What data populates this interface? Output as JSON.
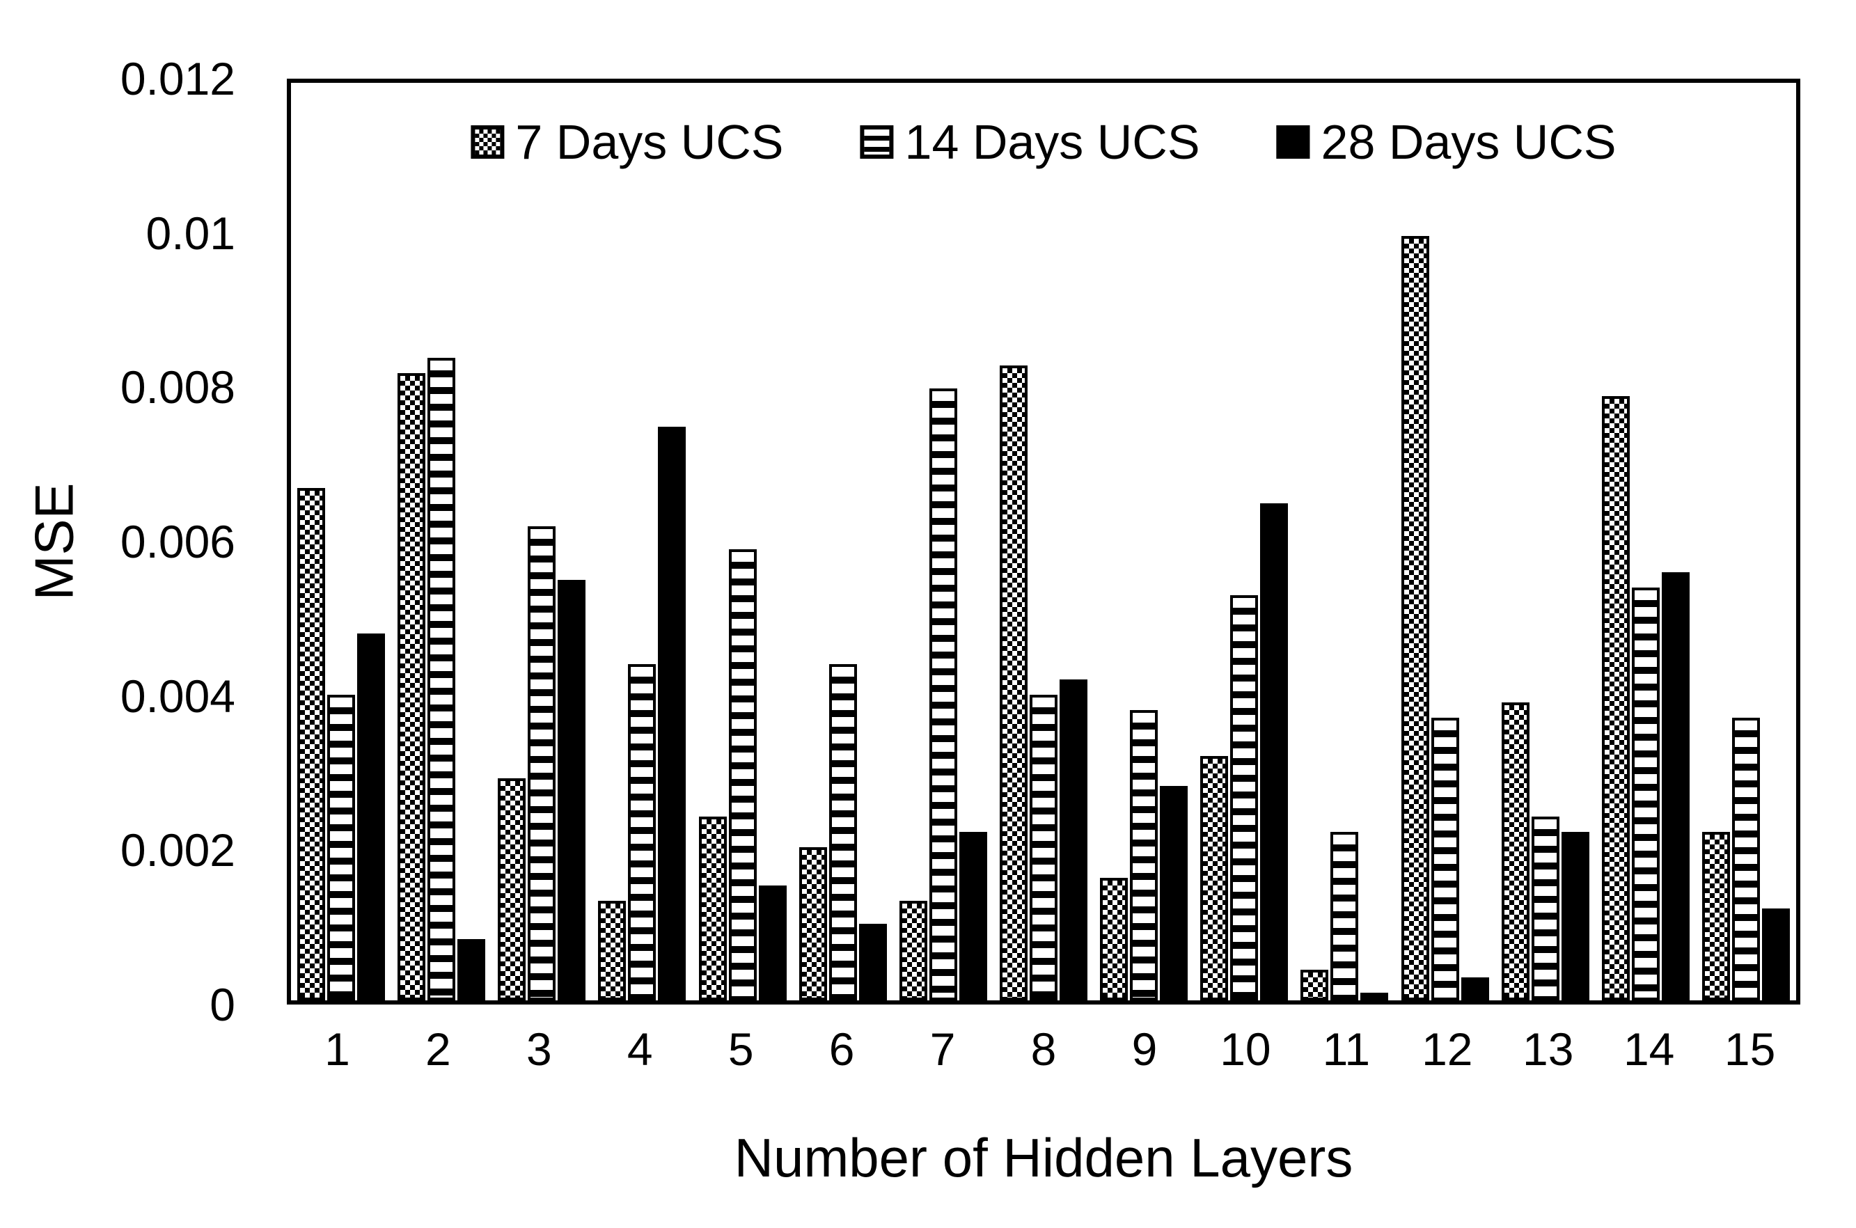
{
  "figure": {
    "y_axis_title": "MSE",
    "x_axis_title": "Number of Hidden Layers",
    "y_ticks": [
      "0.012",
      "0.01",
      "0.008",
      "0.006",
      "0.004",
      "0.002",
      "0"
    ],
    "legend": [
      {
        "label": "7 Days UCS",
        "pattern": "checker"
      },
      {
        "label": "14 Days UCS",
        "pattern": "hlines"
      },
      {
        "label": "28 Days UCS",
        "pattern": "solid"
      }
    ],
    "colors": {
      "foreground": "#000000",
      "background": "#ffffff"
    }
  },
  "chart_data": {
    "type": "bar",
    "title": "",
    "xlabel": "Number of Hidden Layers",
    "ylabel": "MSE",
    "ylim": [
      0,
      0.012
    ],
    "y_tick_step": 0.002,
    "grid": false,
    "legend_position": "top-center-inside",
    "categories": [
      "1",
      "2",
      "3",
      "4",
      "5",
      "6",
      "7",
      "8",
      "9",
      "10",
      "11",
      "12",
      "13",
      "14",
      "15"
    ],
    "series": [
      {
        "name": "7 Days UCS",
        "pattern": "checker",
        "values": [
          0.0067,
          0.0082,
          0.0029,
          0.0013,
          0.0024,
          0.002,
          0.0013,
          0.0083,
          0.0016,
          0.0032,
          0.0004,
          0.01,
          0.0039,
          0.0079,
          0.0022
        ]
      },
      {
        "name": "14 Days UCS",
        "pattern": "hlines",
        "values": [
          0.004,
          0.0084,
          0.0062,
          0.0044,
          0.0059,
          0.0044,
          0.008,
          0.004,
          0.0038,
          0.0053,
          0.0022,
          0.0037,
          0.0024,
          0.0054,
          0.0037
        ]
      },
      {
        "name": "28 Days UCS",
        "pattern": "solid",
        "values": [
          0.0048,
          0.0008,
          0.0055,
          0.0075,
          0.0015,
          0.001,
          0.0022,
          0.0042,
          0.0028,
          0.0065,
          0.0001,
          0.0003,
          0.0022,
          0.0056,
          0.0012
        ]
      }
    ]
  }
}
